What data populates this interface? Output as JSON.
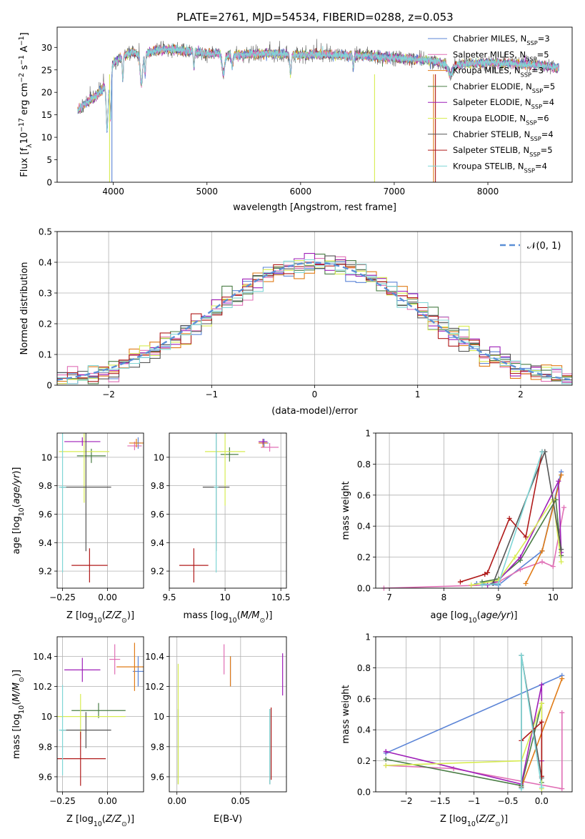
{
  "figure_title": "PLATE=2761, MJD=54534, FIBERID=0288, z=0.053",
  "colors": {
    "Chabrier MILES": "#5b84d6",
    "Salpeter MILES": "#e06fb5",
    "Kroupa MILES": "#e07b16",
    "Chabrier ELODIE": "#4a7d45",
    "Salpeter ELODIE": "#9e1fb8",
    "Kroupa ELODIE": "#d7ec52",
    "Chabrier STELIB": "#555555",
    "Salpeter STELIB": "#b01a1a",
    "Kroupa STELIB": "#7fd6d6"
  },
  "chart_data": [
    {
      "id": "spectrum",
      "type": "line",
      "xlabel": "wavelength [Angstrom, rest frame]",
      "ylabel": "Flux [f_λ10^-17 erg cm^-2 s^-1 A^-1]",
      "xlim": [
        3400,
        8900
      ],
      "ylim": [
        0,
        34.5
      ],
      "xticks": [
        4000,
        5000,
        6000,
        7000,
        8000
      ],
      "yticks": [
        0,
        5,
        10,
        15,
        20,
        25,
        30
      ],
      "grid": false,
      "legend_position": "top-right",
      "legend": [
        {
          "model": "Chabrier MILES",
          "nssp": "3"
        },
        {
          "model": "Salpeter MILES",
          "nssp": "5"
        },
        {
          "model": "Kroupa MILES",
          "nssp": "3"
        },
        {
          "model": "Chabrier ELODIE",
          "nssp": "5"
        },
        {
          "model": "Salpeter ELODIE",
          "nssp": "4"
        },
        {
          "model": "Kroupa ELODIE",
          "nssp": "6"
        },
        {
          "model": "Chabrier STELIB",
          "nssp": "4"
        },
        {
          "model": "Salpeter STELIB",
          "nssp": "5"
        },
        {
          "model": "Kroupa STELIB",
          "nssp": "4"
        }
      ],
      "continuum": {
        "x": [
          3620,
          3700,
          3800,
          3900,
          3950,
          4000,
          4100,
          4200,
          4300,
          4400,
          4500,
          4600,
          4700,
          4800,
          4900,
          5000,
          5100,
          5200,
          5300,
          5400,
          5500,
          5600,
          5700,
          5800,
          5900,
          6000,
          6100,
          6200,
          6300,
          6400,
          6500,
          6600,
          6700,
          6800,
          6900,
          7000,
          7100,
          7200,
          7300,
          7400,
          7500,
          7600,
          7700,
          7800,
          7900,
          8000,
          8100,
          8200,
          8300,
          8400,
          8500,
          8600,
          8700,
          8760
        ],
        "y": [
          16,
          17.5,
          19,
          21,
          22.5,
          26.5,
          28,
          29,
          28,
          29,
          29.5,
          29.6,
          29.4,
          29.2,
          29,
          28.5,
          28.7,
          28.2,
          28.3,
          28.4,
          28.5,
          28.6,
          28.6,
          28.5,
          28.4,
          28.3,
          28.3,
          28.4,
          28.4,
          28.3,
          28.2,
          28.2,
          28.1,
          28.0,
          27.8,
          27.6,
          27.5,
          27.4,
          27.2,
          27.0,
          26.6,
          26.0,
          26.2,
          26.4,
          26.5,
          26.6,
          26.5,
          26.4,
          26.3,
          26.2,
          26.1,
          25.8,
          25.6,
          25.5
        ]
      }
    },
    {
      "id": "residuals",
      "type": "line",
      "xlabel": "(data-model)/error",
      "ylabel": "Normed distribution",
      "xlim": [
        -2.5,
        2.5
      ],
      "ylim": [
        0,
        0.5
      ],
      "xticks": [
        -2,
        -1,
        0,
        1,
        2
      ],
      "yticks": [
        0.0,
        0.1,
        0.2,
        0.3,
        0.4,
        0.5
      ],
      "grid": true,
      "legend_position": "top-right",
      "legend_label": "N(0,1)"
    },
    {
      "id": "age_vs_Z",
      "type": "scatter",
      "xlabel": "Z [log10(Z/Z_sun)]",
      "ylabel": "age [log10(age/yr)]",
      "xlim": [
        -0.28,
        0.2
      ],
      "ylim": [
        9.08,
        10.17
      ],
      "xticks": [
        -0.25,
        0.0
      ],
      "yticks": [
        9.2,
        9.4,
        9.6,
        9.8,
        10.0
      ],
      "grid": true,
      "points": [
        {
          "model": "Chabrier MILES",
          "x": 0.17,
          "y": 10.1,
          "xerr": 0.02,
          "yerr": 0.04
        },
        {
          "model": "Salpeter MILES",
          "x": 0.15,
          "y": 10.08,
          "xerr": 0.04,
          "yerr": 0.03
        },
        {
          "model": "Kroupa MILES",
          "x": 0.16,
          "y": 10.1,
          "xerr": 0.04,
          "yerr": 0.03
        },
        {
          "model": "Chabrier ELODIE",
          "x": -0.09,
          "y": 10.01,
          "xerr": 0.08,
          "yerr": 0.05
        },
        {
          "model": "Salpeter ELODIE",
          "x": -0.14,
          "y": 10.11,
          "xerr": 0.1,
          "yerr": 0.03
        },
        {
          "model": "Kroupa ELODIE",
          "x": -0.13,
          "y": 10.04,
          "xerr": 0.14,
          "yerr": 0.36
        },
        {
          "model": "Chabrier STELIB",
          "x": -0.12,
          "y": 9.79,
          "xerr": 0.14,
          "yerr": 0.45
        },
        {
          "model": "Salpeter STELIB",
          "x": -0.1,
          "y": 9.24,
          "xerr": 0.1,
          "yerr": 0.12
        },
        {
          "model": "Kroupa STELIB",
          "x": -0.25,
          "y": 9.79,
          "xerr": 0.02,
          "yerr": 0.6
        }
      ]
    },
    {
      "id": "age_vs_mass",
      "type": "scatter",
      "xlabel": "mass [log10(M/M_sun)]",
      "ylabel": "",
      "xlim": [
        9.5,
        10.55
      ],
      "ylim": [
        9.08,
        10.17
      ],
      "xticks": [
        9.5,
        10.0,
        10.5
      ],
      "yticks": [
        9.2,
        9.4,
        9.6,
        9.8,
        10.0
      ],
      "grid": true,
      "points": [
        {
          "model": "Chabrier MILES",
          "x": 10.35,
          "y": 10.1,
          "xerr": 0.04,
          "yerr": 0.03
        },
        {
          "model": "Salpeter MILES",
          "x": 10.4,
          "y": 10.07,
          "xerr": 0.08,
          "yerr": 0.03
        },
        {
          "model": "Kroupa MILES",
          "x": 10.34,
          "y": 10.1,
          "xerr": 0.04,
          "yerr": 0.03
        },
        {
          "model": "Chabrier ELODIE",
          "x": 10.04,
          "y": 10.02,
          "xerr": 0.08,
          "yerr": 0.05
        },
        {
          "model": "Salpeter ELODIE",
          "x": 10.34,
          "y": 10.11,
          "xerr": 0.04,
          "yerr": 0.02
        },
        {
          "model": "Kroupa ELODIE",
          "x": 10.0,
          "y": 10.04,
          "xerr": 0.18,
          "yerr": 0.38
        },
        {
          "model": "Chabrier STELIB",
          "x": 9.92,
          "y": 9.79,
          "xerr": 0.12,
          "yerr": 0.45
        },
        {
          "model": "Salpeter STELIB",
          "x": 9.72,
          "y": 9.24,
          "xerr": 0.13,
          "yerr": 0.12
        },
        {
          "model": "Kroupa STELIB",
          "x": 9.92,
          "y": 9.79,
          "xerr": 0.02,
          "yerr": 0.6
        }
      ]
    },
    {
      "id": "weight_vs_age",
      "type": "line",
      "xlabel": "age [log10(age/yr)]",
      "ylabel": "mass weight",
      "xlim": [
        6.75,
        10.35
      ],
      "ylim": [
        0,
        1.0
      ],
      "xticks": [
        7,
        8,
        9,
        10
      ],
      "yticks": [
        0.0,
        0.2,
        0.4,
        0.6,
        0.8,
        1.0
      ],
      "grid": true,
      "series": [
        {
          "model": "Chabrier MILES",
          "x": [
            8.6,
            9.0,
            9.8,
            10.15
          ],
          "y": [
            0.03,
            0.02,
            0.24,
            0.75
          ]
        },
        {
          "model": "Salpeter MILES",
          "x": [
            6.9,
            8.8,
            9.0,
            9.4,
            9.8,
            10.0,
            10.2
          ],
          "y": [
            0.0,
            0.02,
            0.04,
            0.12,
            0.17,
            0.14,
            0.52
          ]
        },
        {
          "model": "Kroupa MILES",
          "x": [
            9.5,
            9.8,
            10.15
          ],
          "y": [
            0.03,
            0.24,
            0.73
          ]
        },
        {
          "model": "Chabrier ELODIE",
          "x": [
            8.7,
            9.0,
            9.4,
            10.05,
            10.15
          ],
          "y": [
            0.04,
            0.06,
            0.18,
            0.57,
            0.21
          ]
        },
        {
          "model": "Salpeter ELODIE",
          "x": [
            8.8,
            9.0,
            9.4,
            10.1,
            10.15
          ],
          "y": [
            0.02,
            0.05,
            0.2,
            0.69,
            0.23
          ]
        },
        {
          "model": "Kroupa ELODIE",
          "x": [
            8.5,
            9.0,
            9.3,
            10.0,
            10.15
          ],
          "y": [
            0.02,
            0.05,
            0.2,
            0.57,
            0.17
          ]
        },
        {
          "model": "Chabrier STELIB",
          "x": [
            8.9,
            9.85,
            10.15
          ],
          "y": [
            0.03,
            0.88,
            0.25
          ]
        },
        {
          "model": "Salpeter STELIB",
          "x": [
            8.3,
            8.75,
            8.8,
            9.2,
            9.5,
            9.8
          ],
          "y": [
            0.04,
            0.09,
            0.1,
            0.45,
            0.33,
            0.88
          ]
        },
        {
          "model": "Kroupa STELIB",
          "x": [
            8.7,
            9.0,
            9.8
          ],
          "y": [
            0.02,
            0.03,
            0.88
          ]
        }
      ]
    },
    {
      "id": "mass_vs_Z",
      "type": "scatter",
      "xlabel": "Z [log10(Z/Z_sun)]",
      "ylabel": "mass [log10(M/M_sun)]",
      "xlim": [
        -0.28,
        0.2
      ],
      "ylim": [
        9.5,
        10.53
      ],
      "xticks": [
        -0.25,
        0.0
      ],
      "yticks": [
        9.6,
        9.8,
        10.0,
        10.2,
        10.4
      ],
      "grid": true,
      "points": [
        {
          "model": "Chabrier MILES",
          "x": 0.17,
          "y": 10.3,
          "xerr": 0.03,
          "yerr": 0.1
        },
        {
          "model": "Salpeter MILES",
          "x": 0.04,
          "y": 10.38,
          "xerr": 0.03,
          "yerr": 0.1
        },
        {
          "model": "Kroupa MILES",
          "x": 0.15,
          "y": 10.33,
          "xerr": 0.1,
          "yerr": 0.16
        },
        {
          "model": "Chabrier ELODIE",
          "x": -0.05,
          "y": 10.04,
          "xerr": 0.15,
          "yerr": 0.05
        },
        {
          "model": "Salpeter ELODIE",
          "x": -0.14,
          "y": 10.31,
          "xerr": 0.1,
          "yerr": 0.08
        },
        {
          "model": "Kroupa ELODIE",
          "x": -0.15,
          "y": 10.0,
          "xerr": 0.25,
          "yerr": 0.15
        },
        {
          "model": "Chabrier STELIB",
          "x": -0.12,
          "y": 9.91,
          "xerr": 0.14,
          "yerr": 0.12
        },
        {
          "model": "Salpeter STELIB",
          "x": -0.15,
          "y": 9.72,
          "xerr": 0.14,
          "yerr": 0.18
        },
        {
          "model": "Kroupa STELIB",
          "x": -0.25,
          "y": 9.91,
          "xerr": 0.02,
          "yerr": 0.3
        }
      ]
    },
    {
      "id": "mass_vs_ebv",
      "type": "scatter",
      "xlabel": "E(B-V)",
      "ylabel": "",
      "xlim": [
        -0.006,
        0.086
      ],
      "ylim": [
        9.5,
        10.53
      ],
      "xticks": [
        0.0,
        0.05
      ],
      "yticks": [
        9.6,
        9.8,
        10.0,
        10.2,
        10.4
      ],
      "grid": true,
      "points": [
        {
          "model": "Chabrier MILES",
          "x": 0.042,
          "y": 10.3,
          "yerr": 0.1
        },
        {
          "model": "Salpeter MILES",
          "x": 0.037,
          "y": 10.38,
          "yerr": 0.1
        },
        {
          "model": "Kroupa MILES",
          "x": 0.042,
          "y": 10.3,
          "yerr": 0.1
        },
        {
          "model": "Chabrier ELODIE",
          "x": 0.001,
          "y": 9.8,
          "yerr": 0.25
        },
        {
          "model": "Salpeter ELODIE",
          "x": 0.083,
          "y": 10.28,
          "yerr": 0.14
        },
        {
          "model": "Kroupa ELODIE",
          "x": 0.001,
          "y": 9.95,
          "yerr": 0.4
        },
        {
          "model": "Chabrier STELIB",
          "x": 0.073,
          "y": 9.8,
          "yerr": 0.25
        },
        {
          "model": "Salpeter STELIB",
          "x": 0.074,
          "y": 9.82,
          "yerr": 0.24
        },
        {
          "model": "Kroupa STELIB",
          "x": 0.073,
          "y": 9.8,
          "yerr": 0.25
        }
      ]
    },
    {
      "id": "weight_vs_Z",
      "type": "line",
      "xlabel": "Z [log10(Z/Z_sun)]",
      "ylabel": "mass weight",
      "xlim": [
        -2.45,
        0.45
      ],
      "ylim": [
        0,
        1.0
      ],
      "xticks": [
        -2.0,
        -1.5,
        -1.0,
        -0.5,
        0.0
      ],
      "yticks": [
        0.0,
        0.2,
        0.4,
        0.6,
        0.8,
        1.0
      ],
      "grid": true,
      "series": [
        {
          "model": "Chabrier MILES",
          "x": [
            -2.3,
            0.3
          ],
          "y": [
            0.25,
            0.75
          ]
        },
        {
          "model": "Salpeter MILES",
          "x": [
            -2.3,
            -1.3,
            0.3,
            0.3
          ],
          "y": [
            0.17,
            0.15,
            0.02,
            0.51
          ]
        },
        {
          "model": "Kroupa MILES",
          "x": [
            -0.3,
            0.3
          ],
          "y": [
            0.03,
            0.73
          ]
        },
        {
          "model": "Chabrier ELODIE",
          "x": [
            -2.3,
            -0.3,
            0.0,
            0.0
          ],
          "y": [
            0.21,
            0.04,
            0.57,
            0.06
          ]
        },
        {
          "model": "Salpeter ELODIE",
          "x": [
            -2.3,
            -0.3,
            0.0,
            0.0
          ],
          "y": [
            0.26,
            0.05,
            0.69,
            0.2
          ]
        },
        {
          "model": "Kroupa ELODIE",
          "x": [
            -2.3,
            -0.3,
            0.0,
            0.0
          ],
          "y": [
            0.17,
            0.2,
            0.57,
            0.02
          ]
        },
        {
          "model": "Chabrier STELIB",
          "x": [
            -0.3,
            -0.3,
            0.0
          ],
          "y": [
            0.03,
            0.88,
            0.09
          ]
        },
        {
          "model": "Salpeter STELIB",
          "x": [
            -0.3,
            0.0,
            0.0
          ],
          "y": [
            0.33,
            0.45,
            0.1
          ]
        },
        {
          "model": "Kroupa STELIB",
          "x": [
            -0.3,
            -0.3,
            0.0
          ],
          "y": [
            0.02,
            0.88,
            0.03
          ]
        }
      ]
    }
  ]
}
